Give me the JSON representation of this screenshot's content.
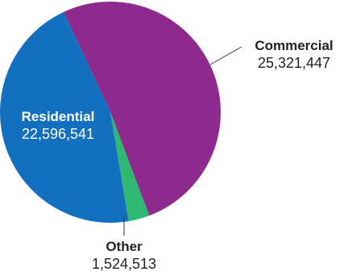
{
  "chart_data": {
    "type": "pie",
    "title": "",
    "slices": [
      {
        "label": "Commercial",
        "value": 25321447,
        "value_text": "25,321,447",
        "color": "#8E2A8E"
      },
      {
        "label": "Other",
        "value": 1524513,
        "value_text": "1,524,513",
        "color": "#2EB872"
      },
      {
        "label": "Residential",
        "value": 22596541,
        "value_text": "22,596,541",
        "color": "#1370BF"
      }
    ],
    "label_colors": {
      "inside": "#ffffff",
      "outside": "#222222"
    }
  }
}
